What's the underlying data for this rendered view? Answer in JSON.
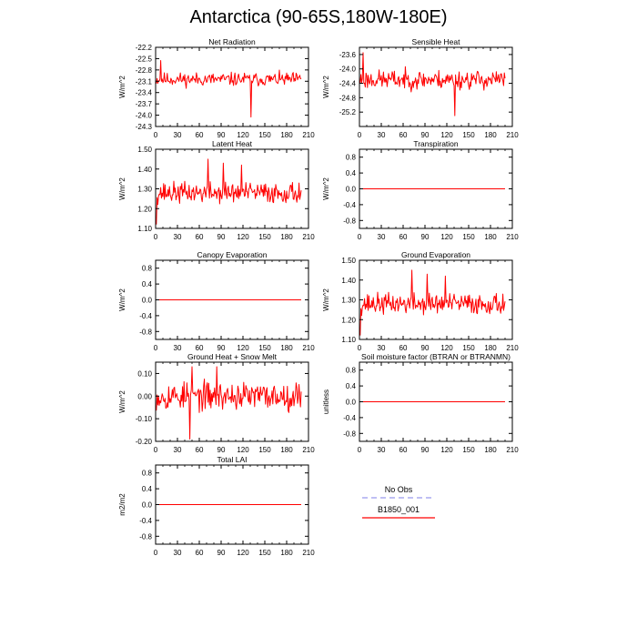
{
  "figure": {
    "title": "Antarctica (90-65S,180W-180E)"
  },
  "legend": {
    "items": [
      {
        "label": "No Obs",
        "color": "#9999ee",
        "dashed": true
      },
      {
        "label": "B1850_001",
        "color": "#ff0000",
        "dashed": false
      }
    ]
  },
  "chart_data": [
    {
      "type": "line",
      "title": "Net Radiation",
      "ylabel": "W/m^2",
      "xlim": [
        0,
        210
      ],
      "xticks": [
        0,
        30,
        60,
        90,
        120,
        150,
        180,
        210
      ],
      "ylim": [
        -24.3,
        -22.2
      ],
      "yticks": [
        -22.2,
        -22.5,
        -22.8,
        -23.1,
        -23.4,
        -23.7,
        -24.0,
        -24.3
      ],
      "ytick_labels": [
        "-22.2",
        "-22.5",
        "-22.8",
        "-23.1",
        "-23.4",
        "-23.7",
        "-24.0",
        "-24.3"
      ],
      "series": [
        {
          "color": "#ff0000",
          "x_start": 1,
          "x_end": 200,
          "mean": -23.05,
          "amp": 0.2,
          "seed": 11,
          "spikes": [
            [
              7,
              -22.55
            ],
            [
              131,
              -24.05
            ]
          ]
        }
      ]
    },
    {
      "type": "line",
      "title": "Sensible Heat",
      "ylabel": "W/m^2",
      "xlim": [
        0,
        210
      ],
      "xticks": [
        0,
        30,
        60,
        90,
        120,
        150,
        180,
        210
      ],
      "ylim": [
        -25.6,
        -23.4
      ],
      "yticks": [
        -23.6,
        -24.0,
        -24.4,
        -24.8,
        -25.2
      ],
      "ytick_labels": [
        "-23.6",
        "-24.0",
        "-24.4",
        "-24.8",
        "-25.2"
      ],
      "series": [
        {
          "color": "#ff0000",
          "x_start": 1,
          "x_end": 200,
          "mean": -24.3,
          "amp": 0.3,
          "seed": 23,
          "spikes": [
            [
              5,
              -23.55
            ],
            [
              131,
              -25.3
            ]
          ]
        }
      ]
    },
    {
      "type": "line",
      "title": "Latent Heat",
      "ylabel": "W/m^2",
      "xlim": [
        0,
        210
      ],
      "xticks": [
        0,
        30,
        60,
        90,
        120,
        150,
        180,
        210
      ],
      "ylim": [
        1.1,
        1.5
      ],
      "yticks": [
        1.1,
        1.2,
        1.3,
        1.4,
        1.5
      ],
      "ytick_labels": [
        "1.10",
        "1.20",
        "1.30",
        "1.40",
        "1.50"
      ],
      "series": [
        {
          "color": "#ff0000",
          "x_start": 1,
          "x_end": 200,
          "mean": 1.28,
          "amp": 0.06,
          "seed": 37,
          "spikes": [
            [
              1,
              1.12
            ],
            [
              72,
              1.45
            ],
            [
              93,
              1.43
            ],
            [
              118,
              1.42
            ]
          ]
        }
      ]
    },
    {
      "type": "line",
      "title": "Transpiration",
      "ylabel": "W/m^2",
      "xlim": [
        0,
        210
      ],
      "xticks": [
        0,
        30,
        60,
        90,
        120,
        150,
        180,
        210
      ],
      "ylim": [
        -1.0,
        1.0
      ],
      "yticks": [
        0.8,
        0.4,
        0.0,
        -0.4,
        -0.8
      ],
      "ytick_labels": [
        "0.8",
        "0.4",
        "0.0",
        "-0.4",
        "-0.8"
      ],
      "series": [
        {
          "color": "#ff0000",
          "x_start": 1,
          "x_end": 200,
          "constant": 0.0
        }
      ]
    },
    {
      "type": "line",
      "title": "Canopy Evaporation",
      "ylabel": "W/m^2",
      "xlim": [
        0,
        210
      ],
      "xticks": [
        0,
        30,
        60,
        90,
        120,
        150,
        180,
        210
      ],
      "ylim": [
        -1.0,
        1.0
      ],
      "yticks": [
        0.8,
        0.4,
        0.0,
        -0.4,
        -0.8
      ],
      "ytick_labels": [
        "0.8",
        "0.4",
        "0.0",
        "-0.4",
        "-0.8"
      ],
      "series": [
        {
          "color": "#ff0000",
          "x_start": 1,
          "x_end": 200,
          "constant": 0.0
        }
      ]
    },
    {
      "type": "line",
      "title": "Ground Evaporation",
      "ylabel": "W/m^2",
      "xlim": [
        0,
        210
      ],
      "xticks": [
        0,
        30,
        60,
        90,
        120,
        150,
        180,
        210
      ],
      "ylim": [
        1.1,
        1.5
      ],
      "yticks": [
        1.1,
        1.2,
        1.3,
        1.4,
        1.5
      ],
      "ytick_labels": [
        "1.10",
        "1.20",
        "1.30",
        "1.40",
        "1.50"
      ],
      "series": [
        {
          "color": "#ff0000",
          "x_start": 1,
          "x_end": 200,
          "mean": 1.28,
          "amp": 0.06,
          "seed": 37,
          "spikes": [
            [
              1,
              1.12
            ],
            [
              72,
              1.45
            ],
            [
              93,
              1.43
            ],
            [
              118,
              1.42
            ]
          ]
        }
      ]
    },
    {
      "type": "line",
      "title": "Ground Heat + Snow Melt",
      "ylabel": "W/m^2",
      "xlim": [
        0,
        210
      ],
      "xticks": [
        0,
        30,
        60,
        90,
        120,
        150,
        180,
        210
      ],
      "ylim": [
        -0.2,
        0.15
      ],
      "yticks": [
        0.1,
        0.0,
        -0.1,
        -0.2
      ],
      "ytick_labels": [
        "0.10",
        "0.00",
        "-0.10",
        "-0.20"
      ],
      "series": [
        {
          "color": "#ff0000",
          "x_start": 1,
          "x_end": 200,
          "mean": 0.0,
          "amp": 0.07,
          "seed": 53,
          "spikes": [
            [
              50,
              0.13
            ],
            [
              84,
              0.13
            ],
            [
              47,
              -0.19
            ]
          ]
        }
      ]
    },
    {
      "type": "line",
      "title": "Soil moisture factor (BTRAN or BTRANMN)",
      "ylabel": "unitless",
      "xlim": [
        0,
        210
      ],
      "xticks": [
        0,
        30,
        60,
        90,
        120,
        150,
        180,
        210
      ],
      "ylim": [
        -1.0,
        1.0
      ],
      "yticks": [
        0.8,
        0.4,
        0.0,
        -0.4,
        -0.8
      ],
      "ytick_labels": [
        "0.8",
        "0.4",
        "0.0",
        "-0.4",
        "-0.8"
      ],
      "series": [
        {
          "color": "#ff0000",
          "x_start": 1,
          "x_end": 200,
          "constant": 0.0
        }
      ]
    },
    {
      "type": "line",
      "title": "Total LAI",
      "ylabel": "m2/m2",
      "xlim": [
        0,
        210
      ],
      "xticks": [
        0,
        30,
        60,
        90,
        120,
        150,
        180,
        210
      ],
      "ylim": [
        -1.0,
        1.0
      ],
      "yticks": [
        0.8,
        0.4,
        0.0,
        -0.4,
        -0.8
      ],
      "ytick_labels": [
        "0.8",
        "0.4",
        "0.0",
        "-0.4",
        "-0.8"
      ],
      "series": [
        {
          "color": "#ff0000",
          "x_start": 1,
          "x_end": 200,
          "constant": 0.0
        }
      ]
    }
  ]
}
